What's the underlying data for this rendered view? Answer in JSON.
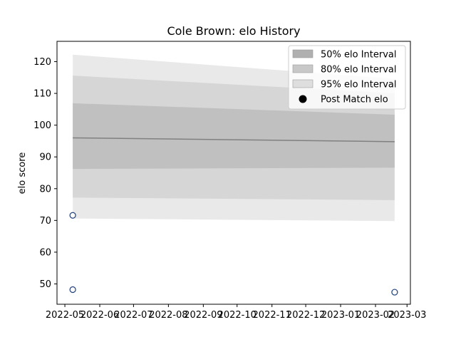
{
  "chart_data": {
    "type": "area",
    "title": "Cole Brown: elo History",
    "xlabel": "",
    "ylabel": "elo score",
    "xlim": [
      "2022-04-24",
      "2023-03-04"
    ],
    "ylim": [
      43.6,
      126.4
    ],
    "x_ticks": [
      "2022-05",
      "2022-06",
      "2022-07",
      "2022-08",
      "2022-09",
      "2022-10",
      "2022-11",
      "2022-12",
      "2023-01",
      "2023-02",
      "2023-03"
    ],
    "y_ticks": [
      50,
      60,
      70,
      80,
      90,
      100,
      110,
      120
    ],
    "grid": false,
    "legend_position": "top-right",
    "x": [
      "2022-05-08",
      "2023-02-18"
    ],
    "bands": [
      {
        "name": "95% elo Interval",
        "color": "#e5e5e5",
        "lower": [
          70.6,
          69.8
        ],
        "upper": [
          122.2,
          114.6
        ]
      },
      {
        "name": "80% elo Interval",
        "color": "#d2d2d2",
        "lower": [
          77.2,
          76.4
        ],
        "upper": [
          115.6,
          110.0
        ]
      },
      {
        "name": "50% elo Interval",
        "color": "#bcbcbc",
        "lower": [
          86.2,
          86.6
        ],
        "upper": [
          106.9,
          103.3
        ]
      }
    ],
    "mean_line": {
      "values": [
        96.0,
        94.8
      ],
      "color": "#808080"
    },
    "points": {
      "name": "Post Match elo",
      "color": "#1f3f7a",
      "data": [
        {
          "x": "2022-05-08",
          "y": 71.6
        },
        {
          "x": "2022-05-08",
          "y": 48.2
        },
        {
          "x": "2023-02-18",
          "y": 47.4
        }
      ]
    }
  }
}
